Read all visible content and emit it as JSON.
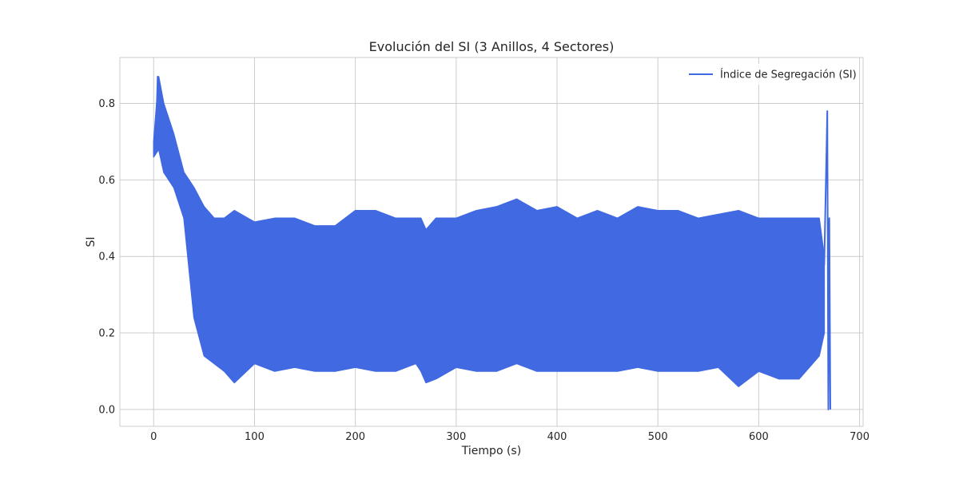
{
  "chart_data": {
    "type": "line",
    "title": "Evolución del SI (3 Anillos, 4 Sectores)",
    "xlabel": "Tiempo (s)",
    "ylabel": "SI",
    "xlim": [
      -33.5,
      703.5
    ],
    "ylim": [
      -0.044,
      0.92
    ],
    "x_ticks": [
      0,
      100,
      200,
      300,
      400,
      500,
      600,
      700
    ],
    "y_ticks": [
      0.0,
      0.2,
      0.4,
      0.6,
      0.8
    ],
    "x_tick_labels": [
      "0",
      "100",
      "200",
      "300",
      "400",
      "500",
      "600",
      "700"
    ],
    "y_tick_labels": [
      "0.0",
      "0.2",
      "0.4",
      "0.6",
      "0.8"
    ],
    "grid": true,
    "legend_position": "top-right",
    "series": [
      {
        "name": "Índice de Segregación (SI)",
        "color": "#4169e1",
        "x": [
          0,
          2,
          3,
          4,
          5,
          8,
          12,
          16,
          20,
          25,
          30,
          35,
          40,
          45,
          50,
          60,
          70,
          80,
          90,
          100,
          120,
          140,
          160,
          180,
          200,
          220,
          240,
          260,
          265,
          270,
          275,
          280,
          300,
          320,
          340,
          355,
          380,
          400,
          420,
          440,
          460,
          480,
          500,
          520,
          540,
          560,
          580,
          590,
          600,
          620,
          640,
          660,
          665,
          668,
          669,
          670,
          671
        ],
        "y": [
          0.67,
          0.68,
          0.78,
          0.87,
          0.79,
          0.73,
          0.69,
          0.66,
          0.62,
          0.57,
          0.52,
          0.47,
          0.42,
          0.38,
          0.35,
          0.33,
          0.32,
          0.31,
          0.31,
          0.31,
          0.31,
          0.3,
          0.3,
          0.3,
          0.31,
          0.3,
          0.3,
          0.3,
          0.27,
          0.28,
          0.29,
          0.3,
          0.31,
          0.31,
          0.32,
          0.33,
          0.32,
          0.31,
          0.31,
          0.31,
          0.31,
          0.3,
          0.3,
          0.3,
          0.3,
          0.3,
          0.29,
          0.28,
          0.3,
          0.3,
          0.3,
          0.3,
          0.38,
          0.78,
          0.0,
          0.5,
          0.0
        ],
        "band_x": [
          0,
          5,
          10,
          20,
          30,
          40,
          50,
          60,
          70,
          80,
          100,
          120,
          140,
          160,
          180,
          200,
          220,
          240,
          260,
          265,
          270,
          280,
          300,
          320,
          340,
          360,
          380,
          400,
          420,
          440,
          460,
          480,
          500,
          520,
          540,
          560,
          580,
          600,
          620,
          640,
          660,
          665
        ],
        "band_min": [
          0.66,
          0.68,
          0.62,
          0.58,
          0.5,
          0.24,
          0.14,
          0.12,
          0.1,
          0.07,
          0.12,
          0.1,
          0.11,
          0.1,
          0.1,
          0.11,
          0.1,
          0.1,
          0.12,
          0.1,
          0.07,
          0.08,
          0.11,
          0.1,
          0.1,
          0.12,
          0.1,
          0.1,
          0.1,
          0.1,
          0.1,
          0.11,
          0.1,
          0.1,
          0.1,
          0.11,
          0.06,
          0.1,
          0.08,
          0.08,
          0.14,
          0.2
        ],
        "band_max": [
          0.7,
          0.87,
          0.8,
          0.72,
          0.62,
          0.58,
          0.53,
          0.5,
          0.5,
          0.52,
          0.49,
          0.5,
          0.5,
          0.48,
          0.48,
          0.52,
          0.52,
          0.5,
          0.5,
          0.5,
          0.47,
          0.5,
          0.5,
          0.52,
          0.53,
          0.55,
          0.52,
          0.53,
          0.5,
          0.52,
          0.5,
          0.53,
          0.52,
          0.52,
          0.5,
          0.51,
          0.52,
          0.5,
          0.5,
          0.5,
          0.5,
          0.4
        ]
      }
    ]
  }
}
